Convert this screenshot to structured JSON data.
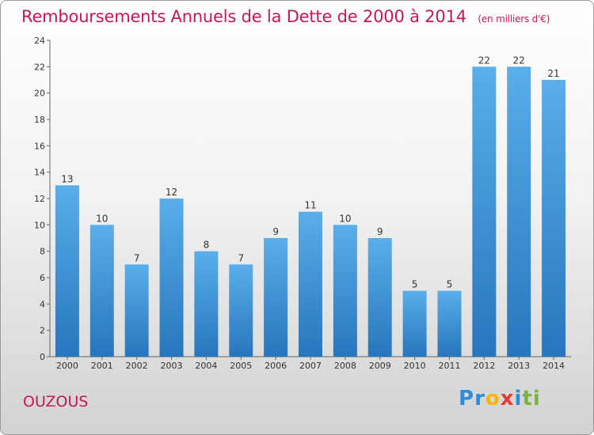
{
  "header": {
    "title": "Remboursements Annuels de la Dette de 2000 à 2014",
    "subtitle": "(en milliers d'€)"
  },
  "footer": {
    "place": "OUZOUS",
    "logo_letters": [
      "P",
      "r",
      "o",
      "x",
      "i",
      "ti"
    ]
  },
  "chart_data": {
    "type": "bar",
    "title": "Remboursements Annuels de la Dette de 2000 à 2014",
    "categories": [
      "2000",
      "2001",
      "2002",
      "2003",
      "2004",
      "2005",
      "2006",
      "2007",
      "2008",
      "2009",
      "2010",
      "2011",
      "2012",
      "2013",
      "2014"
    ],
    "values": [
      13,
      10,
      7,
      12,
      8,
      7,
      9,
      11,
      10,
      9,
      5,
      5,
      22,
      22,
      21
    ],
    "ylim": [
      0,
      24
    ],
    "yticks": [
      0,
      2,
      4,
      6,
      8,
      10,
      12,
      14,
      16,
      18,
      20,
      22,
      24
    ],
    "grid": false,
    "bar_color": "#3a8fd6",
    "legend": "none"
  }
}
